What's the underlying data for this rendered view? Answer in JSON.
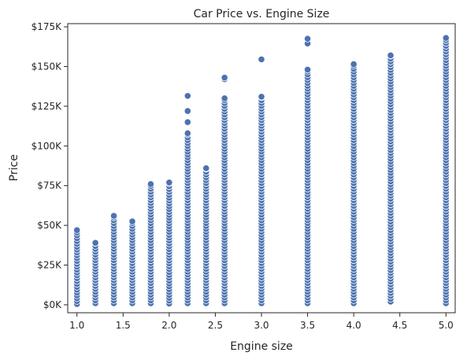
{
  "chart_data": {
    "type": "scatter",
    "title": "Car Price vs. Engine Size",
    "xlabel": "Engine size",
    "ylabel": "Price",
    "xlim": [
      0.9,
      5.1
    ],
    "ylim": [
      -5000,
      177000
    ],
    "x_ticks": [
      1.0,
      1.5,
      2.0,
      2.5,
      3.0,
      3.5,
      4.0,
      4.5,
      5.0
    ],
    "x_tick_labels": [
      "1.0",
      "1.5",
      "2.0",
      "2.5",
      "3.0",
      "3.5",
      "4.0",
      "4.5",
      "5.0"
    ],
    "y_ticks": [
      0,
      25000,
      50000,
      75000,
      100000,
      125000,
      150000,
      175000
    ],
    "y_tick_labels": [
      "$0K",
      "$25K",
      "$50K",
      "$75K",
      "$100K",
      "$125K",
      "$150K",
      "$175K"
    ],
    "grid": false,
    "legend": "none",
    "marker_color": "#4c72b0",
    "marker_edge": "#ffffff",
    "point_columns": [
      {
        "x": 1.0,
        "min": 500,
        "max": 47000,
        "outliers": []
      },
      {
        "x": 1.2,
        "min": 1000,
        "max": 39000,
        "outliers": []
      },
      {
        "x": 1.4,
        "min": 1000,
        "max": 56000,
        "outliers": []
      },
      {
        "x": 1.6,
        "min": 1000,
        "max": 52500,
        "outliers": []
      },
      {
        "x": 1.8,
        "min": 1000,
        "max": 76000,
        "outliers": []
      },
      {
        "x": 2.0,
        "min": 800,
        "max": 77000,
        "outliers": []
      },
      {
        "x": 2.2,
        "min": 1000,
        "max": 108000,
        "outliers": [
          115000,
          122000,
          131500
        ]
      },
      {
        "x": 2.4,
        "min": 1000,
        "max": 86000,
        "outliers": []
      },
      {
        "x": 2.6,
        "min": 1000,
        "max": 130000,
        "outliers": [
          142000,
          143000
        ]
      },
      {
        "x": 3.0,
        "min": 1000,
        "max": 131000,
        "outliers": [
          154500
        ]
      },
      {
        "x": 3.5,
        "min": 1000,
        "max": 148000,
        "outliers": [
          164500,
          167500
        ]
      },
      {
        "x": 4.0,
        "min": 1000,
        "max": 151500,
        "outliers": []
      },
      {
        "x": 4.4,
        "min": 2000,
        "max": 157000,
        "outliers": []
      },
      {
        "x": 5.0,
        "min": 1000,
        "max": 168000,
        "outliers": []
      }
    ]
  }
}
